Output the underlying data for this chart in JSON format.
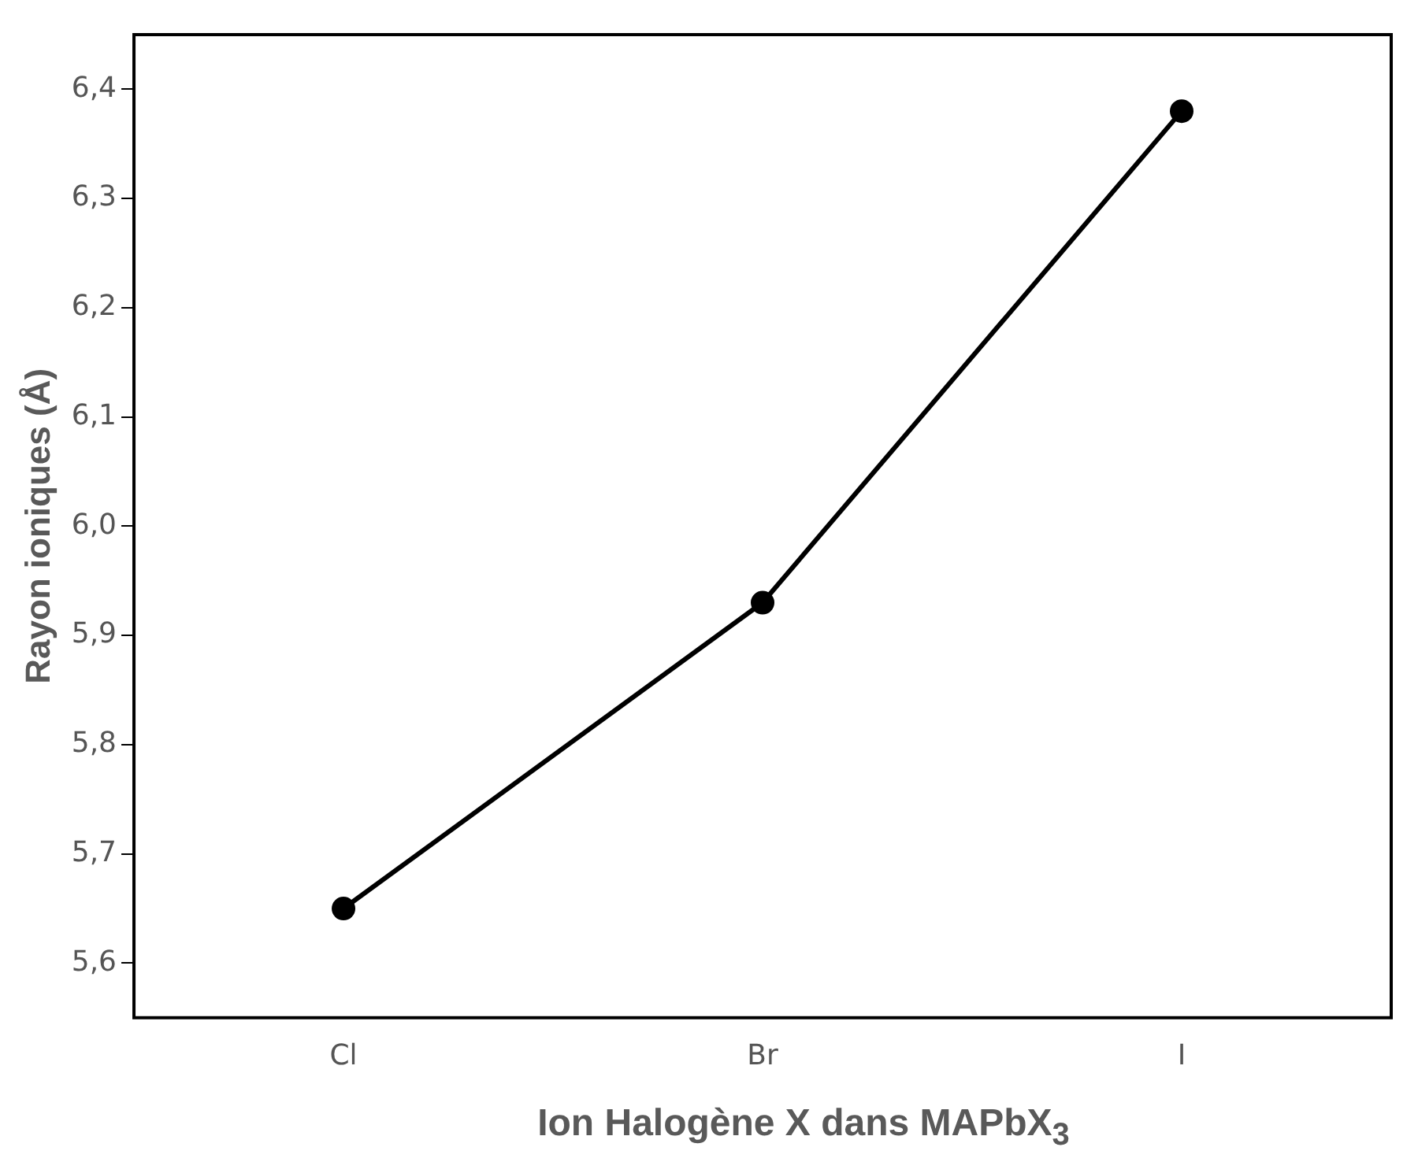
{
  "chart_data": {
    "type": "line",
    "xlabel": "Ion Halogène X dans MAPbX$_{3}$",
    "ylabel": "Rayon ioniques (Å)",
    "categories": [
      "Cl",
      "Br",
      "I"
    ],
    "series": [
      {
        "color": "#000000",
        "values": [
          5.65,
          5.93,
          6.38
        ]
      }
    ],
    "ylim": [
      5.55,
      6.45
    ],
    "yticks": [
      {
        "value": 5.6,
        "label": "5,6"
      },
      {
        "value": 5.7,
        "label": "5,7"
      },
      {
        "value": 5.8,
        "label": "5,8"
      },
      {
        "value": 5.9,
        "label": "5,9"
      },
      {
        "value": 6.0,
        "label": "6,0"
      },
      {
        "value": 6.1,
        "label": "6,1"
      },
      {
        "value": 6.2,
        "label": "6,2"
      },
      {
        "value": 6.3,
        "label": "6,3"
      },
      {
        "value": 6.4,
        "label": "6,4"
      }
    ],
    "grid": false,
    "legend": false,
    "marker": "circle",
    "line_style": "solid"
  }
}
